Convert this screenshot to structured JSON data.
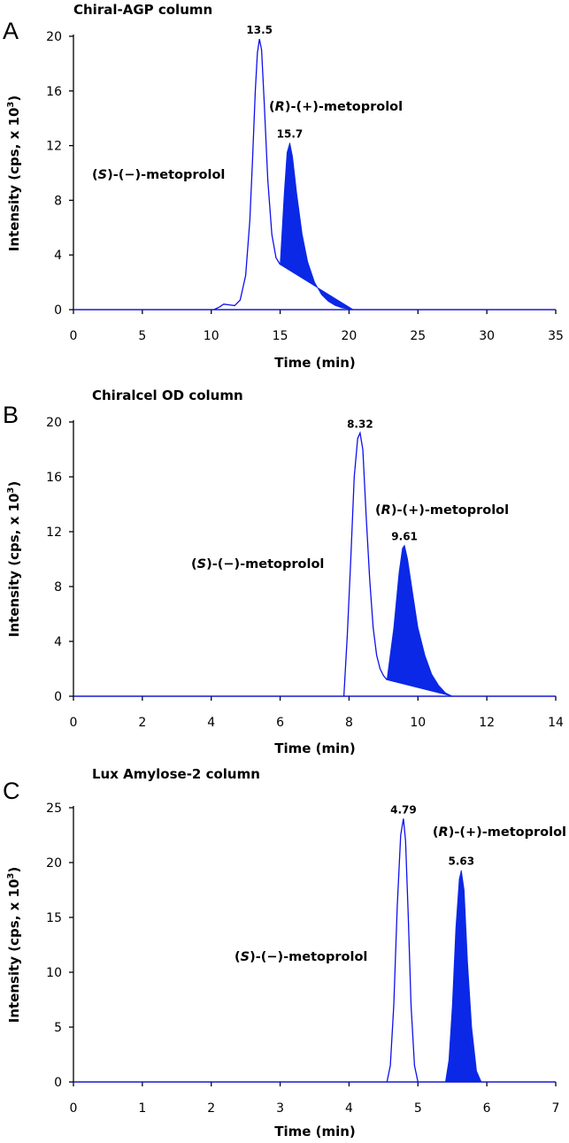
{
  "figure": {
    "y_axis_label_prefix": "Intensity (cps, x 10",
    "y_axis_label_exp": "3",
    "y_axis_label_suffix": ")",
    "x_axis_label": "Time (min)"
  },
  "chart_data": [
    {
      "type": "line",
      "panel": "A",
      "title": "Chiral-AGP column",
      "xlabel": "Time (min)",
      "ylabel": "Intensity (cps, x 10^3)",
      "xlim": [
        0,
        35
      ],
      "ylim": [
        0,
        20
      ],
      "xticks": [
        0,
        5,
        10,
        15,
        20,
        25,
        30,
        35
      ],
      "yticks": [
        0,
        4,
        8,
        12,
        16,
        20
      ],
      "series": [
        {
          "name": "(S)-(−)-metoprolol",
          "peak_time": 13.5,
          "peak_label": "13.5",
          "x": [
            10.2,
            10.6,
            10.9,
            11.3,
            11.7,
            12.1,
            12.5,
            12.8,
            13.0,
            13.2,
            13.35,
            13.5,
            13.65,
            13.85,
            14.1,
            14.4,
            14.7,
            15.0
          ],
          "y": [
            0,
            0.2,
            0.4,
            0.35,
            0.3,
            0.7,
            2.5,
            6.5,
            11.0,
            16.0,
            18.8,
            19.8,
            19.0,
            15.0,
            9.5,
            5.5,
            3.8,
            3.3
          ]
        },
        {
          "name": "(R)-(+)-metoprolol",
          "peak_time": 15.7,
          "peak_label": "15.7",
          "x": [
            15.0,
            15.3,
            15.5,
            15.7,
            15.9,
            16.2,
            16.6,
            17.0,
            17.5,
            18.0,
            18.5,
            19.0,
            19.5,
            20.0,
            20.3
          ],
          "y": [
            3.3,
            8.5,
            11.5,
            12.2,
            11.2,
            8.5,
            5.5,
            3.5,
            2.0,
            1.1,
            0.6,
            0.3,
            0.12,
            0.05,
            0
          ]
        },
        {
          "name": "baseline",
          "x": [
            0,
            35
          ],
          "y": [
            0,
            0
          ]
        }
      ],
      "annotations": {
        "S_prefix": "(",
        "S_letter": "S",
        "S_rest": ")-(−)-metoprolol",
        "R_prefix": "(",
        "R_letter": "R",
        "R_rest": ")-(+)-metoprolol"
      }
    },
    {
      "type": "line",
      "panel": "B",
      "title": "Chiralcel OD column",
      "xlabel": "Time (min)",
      "ylabel": "Intensity (cps, x 10^3)",
      "xlim": [
        0,
        14
      ],
      "ylim": [
        0,
        20
      ],
      "xticks": [
        0,
        2,
        4,
        6,
        8,
        10,
        12,
        14
      ],
      "yticks": [
        0,
        4,
        8,
        12,
        16,
        20
      ],
      "series": [
        {
          "name": "(S)-(−)-metoprolol",
          "peak_time": 8.32,
          "peak_label": "8.32",
          "x": [
            7.85,
            7.95,
            8.05,
            8.15,
            8.25,
            8.32,
            8.4,
            8.5,
            8.6,
            8.7,
            8.8,
            8.9,
            9.0,
            9.1
          ],
          "y": [
            0,
            4.5,
            10.0,
            16.0,
            18.8,
            19.2,
            18.0,
            13.0,
            8.5,
            5.0,
            3.0,
            2.0,
            1.5,
            1.2
          ]
        },
        {
          "name": "(R)-(+)-metoprolol",
          "peak_time": 9.61,
          "peak_label": "9.61",
          "x": [
            9.1,
            9.3,
            9.45,
            9.55,
            9.61,
            9.7,
            9.85,
            10.0,
            10.2,
            10.4,
            10.6,
            10.8,
            11.0
          ],
          "y": [
            1.2,
            5.0,
            9.0,
            10.8,
            11.0,
            10.0,
            7.5,
            5.0,
            3.0,
            1.6,
            0.8,
            0.25,
            0
          ]
        },
        {
          "name": "baseline",
          "x": [
            0,
            14
          ],
          "y": [
            0,
            0
          ]
        }
      ],
      "annotations": {
        "S_prefix": "(",
        "S_letter": "S",
        "S_rest": ")-(−)-metoprolol",
        "R_prefix": "(",
        "R_letter": "R",
        "R_rest": ")-(+)-metoprolol"
      }
    },
    {
      "type": "line",
      "panel": "C",
      "title": "Lux Amylose-2 column",
      "xlabel": "Time (min)",
      "ylabel": "Intensity (cps, x 10^3)",
      "xlim": [
        0,
        7
      ],
      "ylim": [
        0,
        25
      ],
      "xticks": [
        0,
        1,
        2,
        3,
        4,
        5,
        6,
        7
      ],
      "yticks": [
        0,
        5,
        10,
        15,
        20,
        25
      ],
      "series": [
        {
          "name": "(S)-(−)-metoprolol",
          "peak_time": 4.79,
          "peak_label": "4.79",
          "x": [
            4.55,
            4.6,
            4.65,
            4.7,
            4.75,
            4.79,
            4.82,
            4.86,
            4.9,
            4.95,
            5.0
          ],
          "y": [
            0,
            1.5,
            7.0,
            16.0,
            22.5,
            24.0,
            22.0,
            15.0,
            7.0,
            1.5,
            0
          ]
        },
        {
          "name": "(R)-(+)-metoprolol",
          "peak_time": 5.63,
          "peak_label": "5.63",
          "x": [
            5.4,
            5.45,
            5.5,
            5.55,
            5.6,
            5.63,
            5.67,
            5.72,
            5.78,
            5.85,
            5.92
          ],
          "y": [
            0,
            2.0,
            7.0,
            14.0,
            18.5,
            19.3,
            17.5,
            11.0,
            5.0,
            1.0,
            0
          ]
        },
        {
          "name": "baseline",
          "x": [
            0,
            7
          ],
          "y": [
            0,
            0
          ]
        }
      ],
      "annotations": {
        "S_prefix": "(",
        "S_letter": "S",
        "S_rest": ")-(−)-metoprolol",
        "R_prefix": "(",
        "R_letter": "R",
        "R_rest": ")-(+)-metoprolol"
      }
    }
  ]
}
